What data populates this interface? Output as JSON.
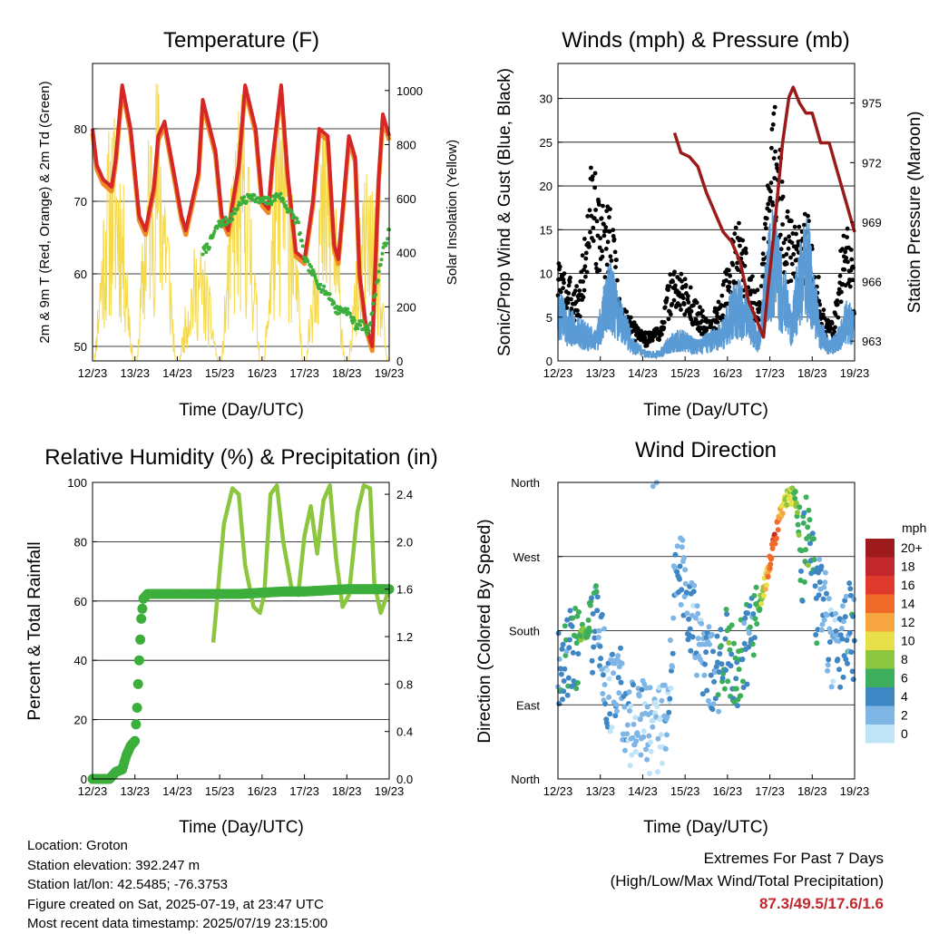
{
  "footer": {
    "location": "Location: Groton",
    "elevation": "Station elevation: 392.247 m",
    "latlon": "Station lat/lon: 42.5485; -76.3753",
    "created": "Figure created on Sat, 2025-07-19, at 23:47 UTC",
    "recent": "Most recent data timestamp: 2025/07/19 23:15:00",
    "extremes_title": "Extremes For Past 7 Days",
    "extremes_subtitle": "(High/Low/Max Wind/Total Precipitation)",
    "extremes_values": "87.3/49.5/17.6/1.6"
  },
  "chart_data": [
    {
      "id": "temperature",
      "type": "line",
      "title": "Temperature (F)",
      "xlabel": "Time (Day/UTC)",
      "ylabel": "2m & 9m T (Red, Orange) & 2m Td (Green)",
      "y2label": "Solar Insolation (Yellow)",
      "x_ticks": [
        "12/23",
        "13/23",
        "14/23",
        "15/23",
        "16/23",
        "17/23",
        "18/23",
        "19/23"
      ],
      "xlim": [
        12,
        19
      ],
      "ylim": [
        48,
        89
      ],
      "y_ticks": [
        50,
        60,
        70,
        80
      ],
      "y2lim": [
        0,
        1100
      ],
      "y2_ticks": [
        0,
        200,
        400,
        600,
        800,
        1000
      ],
      "grid": true,
      "colors": {
        "t2m": "#d62728",
        "t9m": "#f08a24",
        "td": "#3cae3c",
        "solar": "#f5d94a"
      },
      "series": [
        {
          "name": "2m T",
          "x": [
            12.0,
            12.1,
            12.25,
            12.45,
            12.55,
            12.7,
            12.9,
            13.1,
            13.25,
            13.45,
            13.55,
            13.7,
            13.95,
            14.1,
            14.2,
            14.5,
            14.6,
            14.9,
            15.05,
            15.2,
            15.45,
            15.6,
            15.85,
            16.0,
            16.15,
            16.25,
            16.45,
            16.6,
            16.8,
            17.0,
            17.2,
            17.35,
            17.55,
            17.7,
            17.8,
            17.95,
            18.05,
            18.2,
            18.3,
            18.45,
            18.6,
            18.75,
            18.85,
            18.95,
            19.0
          ],
          "y": [
            80,
            75,
            73,
            72,
            76,
            86,
            80,
            68,
            66,
            72,
            79,
            81,
            73,
            68,
            66,
            74,
            84,
            77,
            68,
            66,
            75,
            86,
            80,
            70,
            69,
            76,
            86,
            74,
            63,
            62,
            70,
            80,
            79,
            64,
            62,
            72,
            79,
            76,
            60,
            53,
            50,
            73,
            82,
            80,
            79
          ]
        },
        {
          "name": "Td",
          "x": [
            14.6,
            14.75,
            14.9,
            15.0,
            15.1,
            15.3,
            15.5,
            15.6,
            15.75,
            15.9,
            16.0,
            16.2,
            16.4,
            16.6,
            16.85,
            17.0,
            17.2,
            17.4,
            17.6,
            17.75,
            17.85,
            18.0,
            18.2,
            18.35,
            18.5,
            18.6,
            18.75,
            18.85,
            19.0
          ],
          "y": [
            63,
            64,
            66,
            67,
            67,
            68,
            70,
            70,
            71,
            70,
            70,
            70,
            71,
            69,
            67,
            62,
            60,
            58,
            57,
            55,
            55,
            55,
            53,
            53,
            52,
            55,
            60,
            63,
            66
          ]
        },
        {
          "name": "Solar",
          "days": [
            12,
            13,
            14,
            15,
            16,
            17,
            18
          ],
          "peaks": [
            950,
            1100,
            450,
            1000,
            1000,
            900,
            700
          ]
        }
      ]
    },
    {
      "id": "winds",
      "type": "scatter",
      "title": "Winds (mph) & Pressure (mb)",
      "xlabel": "Time (Day/UTC)",
      "ylabel": "Sonic/Prop Wind & Gust (Blue, Black)",
      "y2label": "Station Pressure (Maroon)",
      "x_ticks": [
        "12/23",
        "13/23",
        "14/23",
        "15/23",
        "16/23",
        "17/23",
        "18/23",
        "19/23"
      ],
      "xlim": [
        12,
        19
      ],
      "ylim": [
        0,
        34
      ],
      "y_ticks": [
        0,
        5,
        10,
        15,
        20,
        25,
        30
      ],
      "y2lim": [
        962.0,
        977.0
      ],
      "y2_ticks": [
        963,
        966,
        969,
        972,
        975
      ],
      "grid": true,
      "colors": {
        "wind": "#5b9bd5",
        "gust": "#000000",
        "pressure": "#9b1b1b"
      },
      "series": [
        {
          "name": "Sonic/Prop Wind",
          "x": [
            12.0,
            12.3,
            12.6,
            12.9,
            13.2,
            13.5,
            13.8,
            14.1,
            14.4,
            14.7,
            15.0,
            15.3,
            15.6,
            15.9,
            16.1,
            16.3,
            16.5,
            16.7,
            16.8,
            16.9,
            17.0,
            17.1,
            17.2,
            17.3,
            17.4,
            17.5,
            17.7,
            17.9,
            18.0,
            18.2,
            18.4,
            18.6,
            18.8,
            19.0
          ],
          "y": [
            7,
            5,
            4,
            3,
            10,
            6,
            2,
            1,
            1,
            3,
            3,
            2,
            3,
            4,
            7,
            8,
            6,
            3,
            5,
            10,
            14,
            15,
            12,
            10,
            8,
            5,
            12,
            14,
            10,
            4,
            2,
            3,
            6,
            5
          ]
        },
        {
          "name": "Gust",
          "x": [
            12.0,
            12.2,
            12.5,
            12.65,
            12.8,
            13.0,
            13.2,
            13.35,
            13.5,
            13.8,
            14.1,
            14.4,
            14.7,
            15.0,
            15.3,
            15.6,
            15.9,
            16.1,
            16.3,
            16.5,
            16.75,
            16.9,
            17.0,
            17.1,
            17.2,
            17.3,
            17.5,
            17.7,
            17.9,
            18.1,
            18.3,
            18.5,
            18.7,
            18.9,
            19.0
          ],
          "y": [
            11,
            9,
            8,
            14,
            22,
            16,
            18,
            12,
            6,
            4,
            3,
            4,
            10,
            9,
            6,
            4,
            8,
            13,
            15,
            10,
            7,
            15,
            22,
            31,
            26,
            19,
            15,
            14,
            16,
            10,
            5,
            4,
            13,
            15,
            9
          ]
        },
        {
          "name": "Pressure",
          "x": [
            14.75,
            14.9,
            15.1,
            15.3,
            15.5,
            15.7,
            15.9,
            16.1,
            16.3,
            16.5,
            16.7,
            16.85,
            16.95,
            17.1,
            17.3,
            17.45,
            17.55,
            17.7,
            17.85,
            18.0,
            18.2,
            18.4,
            18.6,
            18.8,
            19.0
          ],
          "y": [
            973.5,
            972.5,
            972.3,
            971.8,
            970.5,
            969.5,
            968.5,
            968.0,
            967.0,
            965.0,
            964.0,
            963.2,
            965.5,
            968.5,
            973.0,
            975.3,
            975.8,
            975.0,
            974.5,
            974.5,
            973.0,
            973.0,
            971.5,
            970.0,
            968.5
          ]
        }
      ]
    },
    {
      "id": "rh",
      "type": "line",
      "title": "Relative Humidity (%) & Precipitation (in)",
      "xlabel": "Time (Day/UTC)",
      "ylabel": "Percent & Total Rainfall",
      "x_ticks": [
        "12/23",
        "13/23",
        "14/23",
        "15/23",
        "16/23",
        "17/23",
        "18/23",
        "19/23"
      ],
      "xlim": [
        12,
        19
      ],
      "ylim": [
        0,
        100
      ],
      "y_ticks": [
        0,
        20,
        40,
        60,
        80,
        100
      ],
      "y2lim": [
        0,
        2.5
      ],
      "y2_ticks": [
        "0.0",
        "0.4",
        "0.8",
        "1.2",
        "1.6",
        "2.0",
        "2.4"
      ],
      "grid": true,
      "colors": {
        "rh": "#8cc63f",
        "precip": "#3cae3c"
      },
      "series": [
        {
          "name": "RH",
          "x": [
            14.85,
            14.95,
            15.1,
            15.3,
            15.45,
            15.6,
            15.8,
            15.95,
            16.05,
            16.2,
            16.35,
            16.5,
            16.7,
            16.85,
            17.0,
            17.15,
            17.3,
            17.45,
            17.6,
            17.75,
            17.9,
            18.05,
            18.25,
            18.4,
            18.55,
            18.65,
            18.8,
            19.0
          ],
          "y": [
            46,
            62,
            86,
            98,
            96,
            72,
            58,
            56,
            62,
            96,
            99,
            80,
            64,
            62,
            82,
            92,
            76,
            94,
            99,
            74,
            58,
            62,
            90,
            99,
            98,
            66,
            56,
            64
          ]
        },
        {
          "name": "Total Precipitation",
          "x": [
            12.0,
            12.2,
            12.4,
            12.55,
            12.7,
            12.8,
            12.9,
            13.0,
            13.05,
            13.1,
            13.15,
            13.2,
            13.3,
            13.5,
            14.0,
            14.5,
            15.0,
            15.5,
            16.0,
            16.5,
            17.0,
            17.5,
            18.0,
            18.5,
            19.0
          ],
          "y": [
            0.0,
            0.0,
            0.0,
            0.06,
            0.08,
            0.2,
            0.28,
            0.32,
            0.6,
            1.0,
            1.35,
            1.52,
            1.56,
            1.56,
            1.56,
            1.56,
            1.56,
            1.56,
            1.57,
            1.58,
            1.58,
            1.59,
            1.6,
            1.6,
            1.6
          ]
        }
      ]
    },
    {
      "id": "winddir",
      "type": "scatter",
      "title": "Wind Direction",
      "xlabel": "Time (Day/UTC)",
      "ylabel": "Direction (Colored By Speed)",
      "x_ticks": [
        "12/23",
        "13/23",
        "14/23",
        "15/23",
        "16/23",
        "17/23",
        "18/23",
        "19/23"
      ],
      "xlim": [
        12,
        19
      ],
      "ylim": [
        0,
        360
      ],
      "y_ticks": [
        "North",
        "East",
        "South",
        "West",
        "North"
      ],
      "grid": true,
      "legend": {
        "title": "mph",
        "labels": [
          "20+",
          "18",
          "16",
          "14",
          "12",
          "10",
          "8",
          "6",
          "4",
          "2",
          "0"
        ],
        "colors": [
          "#9e1b1b",
          "#c1272d",
          "#e03a2f",
          "#f06b2a",
          "#f7a540",
          "#e8e04a",
          "#8cc63f",
          "#3cae5c",
          "#3f86c4",
          "#7fb6e6",
          "#bfe4f8"
        ],
        "position": "right"
      },
      "series": [
        {
          "name": "Direction",
          "x": [
            12.0,
            12.2,
            12.4,
            12.6,
            12.8,
            12.95,
            13.2,
            13.4,
            13.7,
            14.0,
            14.3,
            14.6,
            14.8,
            15.0,
            15.3,
            15.6,
            15.8,
            16.0,
            16.2,
            16.4,
            16.6,
            16.8,
            16.95,
            17.1,
            17.25,
            17.4,
            17.6,
            17.75,
            17.9,
            18.1,
            18.3,
            18.5,
            18.7,
            18.9,
            19.0
          ],
          "dir": [
            140,
            150,
            160,
            180,
            175,
            190,
            90,
            120,
            60,
            80,
            40,
            100,
            260,
            240,
            170,
            140,
            120,
            160,
            130,
            150,
            185,
            220,
            250,
            290,
            320,
            340,
            345,
            260,
            300,
            220,
            200,
            150,
            170,
            190,
            170
          ],
          "speed": [
            4,
            4,
            5,
            7,
            5,
            4,
            2,
            3,
            2,
            2,
            1,
            2,
            3,
            3,
            2,
            3,
            4,
            6,
            5,
            4,
            4,
            8,
            12,
            16,
            12,
            9,
            8,
            5,
            6,
            4,
            2,
            2,
            3,
            4,
            4
          ]
        }
      ]
    }
  ]
}
